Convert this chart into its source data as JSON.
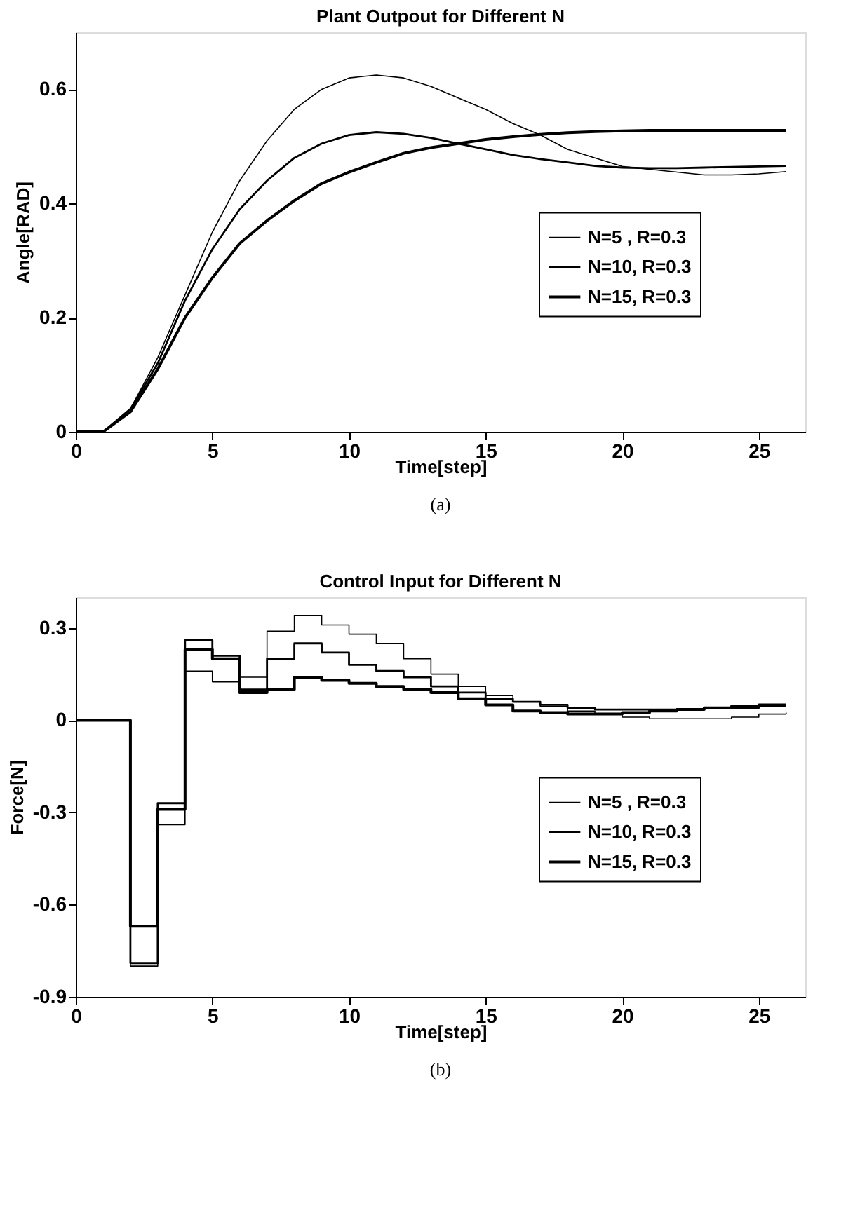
{
  "chart_data": [
    {
      "type": "line",
      "title": "Plant Outpout for Different N",
      "xlabel": "Time[step]",
      "ylabel": "Angle[RAD]",
      "annotations": [
        "(a)"
      ],
      "x": [
        0,
        1,
        2,
        3,
        4,
        5,
        6,
        7,
        8,
        9,
        10,
        11,
        12,
        13,
        14,
        15,
        16,
        17,
        18,
        19,
        20,
        21,
        22,
        23,
        24,
        25,
        26
      ],
      "series": [
        {
          "name": "N=5 , R=0.3",
          "color": "#000000",
          "values": [
            0,
            0,
            0.04,
            0.13,
            0.24,
            0.35,
            0.44,
            0.51,
            0.565,
            0.6,
            0.62,
            0.625,
            0.62,
            0.605,
            0.585,
            0.565,
            0.54,
            0.52,
            0.495,
            0.48,
            0.465,
            0.46,
            0.455,
            0.45,
            0.45,
            0.452,
            0.456
          ]
        },
        {
          "name": "N=10, R=0.3",
          "color": "#000000",
          "values": [
            0,
            0,
            0.04,
            0.12,
            0.23,
            0.32,
            0.39,
            0.44,
            0.48,
            0.505,
            0.52,
            0.525,
            0.522,
            0.515,
            0.505,
            0.495,
            0.485,
            0.478,
            0.472,
            0.466,
            0.463,
            0.462,
            0.462,
            0.463,
            0.464,
            0.465,
            0.466
          ]
        },
        {
          "name": "N=15, R=0.3",
          "color": "#000000",
          "values": [
            0,
            0,
            0.035,
            0.11,
            0.2,
            0.27,
            0.33,
            0.37,
            0.405,
            0.435,
            0.455,
            0.472,
            0.488,
            0.498,
            0.505,
            0.512,
            0.517,
            0.521,
            0.524,
            0.526,
            0.527,
            0.528,
            0.528,
            0.528,
            0.528,
            0.528,
            0.528
          ]
        }
      ],
      "xlim": [
        0,
        26.7
      ],
      "xticks": [
        0,
        5,
        10,
        15,
        20,
        25
      ],
      "ylim": [
        0,
        0.7
      ],
      "yticks": [
        0,
        0.2,
        0.4,
        0.6
      ],
      "legend": "right"
    },
    {
      "type": "step",
      "title": "Control Input for Different N",
      "xlabel": "Time[step]",
      "ylabel": "Force[N]",
      "annotations": [
        "(b)"
      ],
      "x": [
        0,
        1,
        2,
        3,
        4,
        5,
        6,
        7,
        8,
        9,
        10,
        11,
        12,
        13,
        14,
        15,
        16,
        17,
        18,
        19,
        20,
        21,
        22,
        23,
        24,
        25,
        26
      ],
      "series": [
        {
          "name": "N=5 , R=0.3",
          "color": "#000000",
          "values": [
            0,
            0,
            -0.8,
            -0.34,
            0.16,
            0.125,
            0.14,
            0.29,
            0.34,
            0.31,
            0.28,
            0.25,
            0.2,
            0.15,
            0.11,
            0.08,
            0.06,
            0.045,
            0.03,
            0.02,
            0.01,
            0.005,
            0.005,
            0.005,
            0.01,
            0.02,
            0.025
          ]
        },
        {
          "name": "N=10, R=0.3",
          "color": "#000000",
          "values": [
            0,
            0,
            -0.79,
            -0.27,
            0.26,
            0.21,
            0.1,
            0.2,
            0.25,
            0.22,
            0.18,
            0.16,
            0.14,
            0.11,
            0.09,
            0.07,
            0.06,
            0.05,
            0.04,
            0.035,
            0.035,
            0.035,
            0.035,
            0.04,
            0.04,
            0.045,
            0.045
          ]
        },
        {
          "name": "N=15, R=0.3",
          "color": "#000000",
          "values": [
            0,
            0,
            -0.67,
            -0.29,
            0.23,
            0.2,
            0.09,
            0.1,
            0.14,
            0.13,
            0.12,
            0.11,
            0.1,
            0.09,
            0.07,
            0.05,
            0.03,
            0.025,
            0.02,
            0.02,
            0.025,
            0.03,
            0.035,
            0.04,
            0.045,
            0.05,
            0.05
          ]
        }
      ],
      "xlim": [
        0,
        26.7
      ],
      "xticks": [
        0,
        5,
        10,
        15,
        20,
        25
      ],
      "ylim": [
        -0.9,
        0.4
      ],
      "yticks": [
        0.3,
        0,
        -0.3,
        -0.6,
        -0.9
      ],
      "legend": "right"
    }
  ]
}
